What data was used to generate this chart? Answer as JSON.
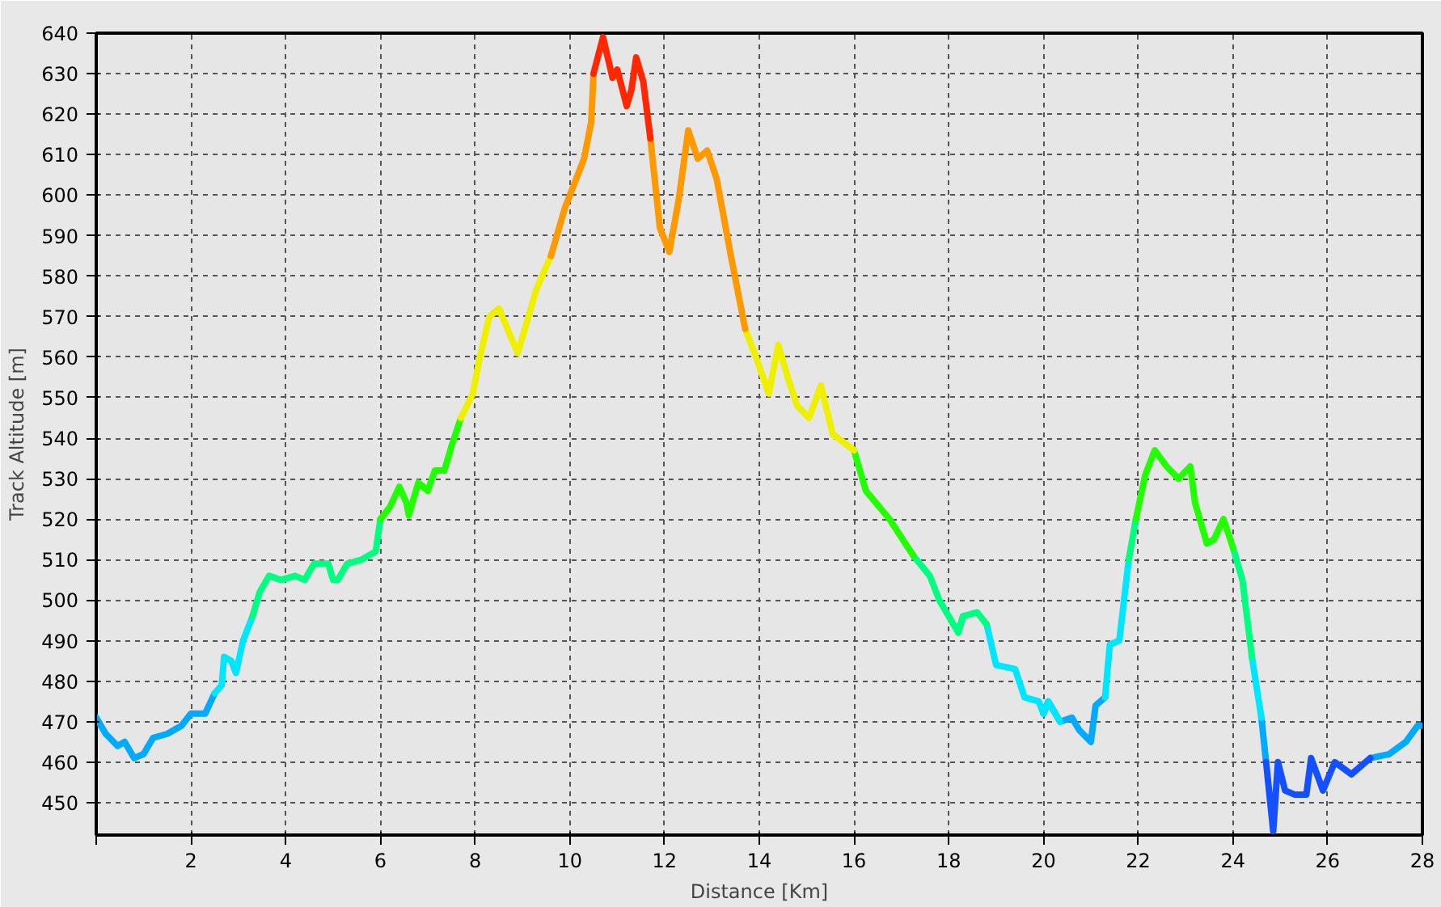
{
  "chart_data": {
    "type": "line",
    "xlabel": "Distance [Km]",
    "ylabel": "Track Altitude [m]",
    "xlim": [
      0,
      28
    ],
    "ylim": [
      442,
      640
    ],
    "xticks": [
      {
        "value": 0,
        "label": null
      },
      2,
      4,
      6,
      8,
      10,
      12,
      14,
      16,
      18,
      20,
      22,
      24,
      26,
      28
    ],
    "yticks": [
      450,
      460,
      470,
      480,
      490,
      500,
      510,
      520,
      530,
      540,
      550,
      560,
      570,
      580,
      590,
      600,
      610,
      620,
      630,
      640
    ],
    "grid": true,
    "marker": "none",
    "line_style": "solid",
    "x": [
      0,
      0.2,
      0.45,
      0.6,
      0.8,
      1.0,
      1.2,
      1.5,
      1.8,
      2.0,
      2.3,
      2.5,
      2.65,
      2.7,
      2.85,
      2.95,
      3.1,
      3.3,
      3.45,
      3.65,
      3.9,
      4.2,
      4.4,
      4.6,
      4.9,
      5.0,
      5.1,
      5.3,
      5.6,
      5.9,
      6.0,
      6.2,
      6.4,
      6.55,
      6.6,
      6.8,
      7.0,
      7.15,
      7.35,
      7.5,
      7.7,
      7.95,
      8.1,
      8.3,
      8.5,
      8.9,
      9.3,
      9.6,
      9.9,
      10.3,
      10.45,
      10.5,
      10.7,
      10.9,
      11.0,
      11.2,
      11.3,
      11.4,
      11.55,
      11.7,
      11.9,
      12.1,
      12.3,
      12.5,
      12.7,
      12.9,
      13.1,
      13.4,
      13.7,
      13.9,
      14.2,
      14.4,
      14.6,
      14.8,
      15.05,
      15.3,
      15.55,
      16.0,
      16.25,
      16.75,
      17.25,
      17.6,
      17.8,
      18.2,
      18.3,
      18.6,
      18.8,
      19.0,
      19.4,
      19.6,
      19.9,
      20.0,
      20.1,
      20.35,
      20.6,
      20.75,
      21.0,
      21.1,
      21.3,
      21.4,
      21.6,
      21.8,
      21.95,
      22.15,
      22.35,
      22.6,
      22.85,
      23.1,
      23.2,
      23.45,
      23.6,
      23.8,
      24.0,
      24.2,
      24.4,
      24.6,
      24.7,
      24.85,
      24.95,
      25.1,
      25.3,
      25.55,
      25.65,
      25.9,
      26.15,
      26.5,
      26.9,
      27.3,
      27.65,
      27.9,
      28.0
    ],
    "series": [
      {
        "color": "#00aaff",
        "values": [
          471,
          467,
          464,
          465,
          461,
          462,
          466,
          467,
          469,
          472,
          472,
          477,
          null,
          null,
          null,
          null,
          null,
          null,
          null,
          null,
          null,
          null,
          null,
          null,
          null,
          null,
          null,
          null,
          null,
          null,
          null,
          null,
          null,
          null,
          null,
          null,
          null,
          null,
          null,
          null,
          null,
          null,
          null,
          null,
          null,
          null,
          null,
          null,
          null,
          null,
          null,
          null,
          null,
          null,
          null,
          null,
          null,
          null,
          null,
          null,
          null,
          null,
          null,
          null,
          null,
          null,
          null,
          null,
          null,
          null,
          null,
          null,
          null,
          null,
          null,
          null,
          null,
          null,
          null,
          null,
          null,
          null,
          null,
          null,
          null,
          null,
          null,
          null,
          null,
          null,
          null,
          472,
          475,
          470,
          471,
          468,
          465,
          474,
          476,
          null,
          null,
          null,
          null,
          null,
          null,
          null,
          null,
          null,
          null,
          null,
          null,
          null,
          null,
          null,
          null,
          471,
          460,
          null,
          null,
          null,
          null,
          null,
          null,
          null,
          null,
          null,
          461,
          462,
          465,
          469,
          469
        ]
      },
      {
        "color": "#00e6ff",
        "values": [
          null,
          null,
          null,
          null,
          null,
          null,
          null,
          null,
          null,
          null,
          null,
          477,
          479,
          486,
          485,
          482,
          490,
          496,
          null,
          null,
          null,
          null,
          null,
          null,
          null,
          null,
          null,
          null,
          null,
          null,
          null,
          null,
          null,
          null,
          null,
          null,
          null,
          null,
          null,
          null,
          null,
          null,
          null,
          null,
          null,
          null,
          null,
          null,
          null,
          null,
          null,
          null,
          null,
          null,
          null,
          null,
          null,
          null,
          null,
          null,
          null,
          null,
          null,
          null,
          null,
          null,
          null,
          null,
          null,
          null,
          null,
          null,
          null,
          null,
          null,
          null,
          null,
          null,
          null,
          null,
          null,
          null,
          null,
          492,
          496,
          null,
          494,
          484,
          483,
          476,
          475,
          472,
          475,
          470,
          null,
          null,
          null,
          null,
          476,
          489,
          490,
          510,
          null,
          null,
          null,
          null,
          null,
          null,
          null,
          null,
          null,
          null,
          null,
          null,
          486,
          471,
          null,
          null,
          null,
          null,
          null,
          null,
          null,
          null,
          null,
          null,
          null,
          null,
          null,
          null,
          null
        ]
      },
      {
        "color": "#00ff80",
        "values": [
          null,
          null,
          null,
          null,
          null,
          null,
          null,
          null,
          null,
          null,
          null,
          null,
          null,
          null,
          null,
          null,
          null,
          496,
          502,
          506,
          505,
          506,
          505,
          509,
          509,
          505,
          505,
          509,
          510,
          512,
          520,
          null,
          null,
          null,
          null,
          null,
          null,
          null,
          null,
          null,
          null,
          null,
          null,
          null,
          null,
          null,
          null,
          null,
          null,
          null,
          null,
          null,
          null,
          null,
          null,
          null,
          null,
          null,
          null,
          null,
          null,
          null,
          null,
          null,
          null,
          null,
          null,
          null,
          null,
          null,
          null,
          null,
          null,
          null,
          null,
          null,
          null,
          null,
          null,
          null,
          511,
          506,
          500,
          492,
          496,
          497,
          494,
          null,
          null,
          null,
          null,
          null,
          null,
          null,
          null,
          null,
          null,
          null,
          null,
          null,
          null,
          510,
          520,
          null,
          null,
          null,
          null,
          null,
          null,
          514,
          515,
          null,
          513,
          505,
          486,
          null,
          null,
          null,
          null,
          null,
          null,
          null,
          null,
          null,
          null,
          null,
          null,
          null,
          null,
          null,
          null
        ]
      },
      {
        "color": "#22ff00",
        "values": [
          null,
          null,
          null,
          null,
          null,
          null,
          null,
          null,
          null,
          null,
          null,
          null,
          null,
          null,
          null,
          null,
          null,
          null,
          null,
          null,
          null,
          null,
          null,
          null,
          null,
          null,
          null,
          null,
          null,
          null,
          520,
          523,
          528,
          524,
          521,
          529,
          527,
          532,
          532,
          538,
          545,
          null,
          null,
          null,
          null,
          null,
          null,
          null,
          null,
          null,
          null,
          null,
          null,
          null,
          null,
          null,
          null,
          null,
          null,
          null,
          null,
          null,
          null,
          null,
          null,
          null,
          null,
          null,
          null,
          null,
          null,
          null,
          null,
          null,
          null,
          null,
          null,
          537,
          527,
          520,
          511,
          null,
          null,
          null,
          null,
          null,
          null,
          null,
          null,
          null,
          null,
          null,
          null,
          null,
          null,
          null,
          null,
          null,
          null,
          null,
          null,
          null,
          520,
          531,
          537,
          533,
          530,
          533,
          524,
          514,
          515,
          520,
          513,
          null,
          null,
          null,
          null,
          null,
          null,
          null,
          null,
          null,
          null,
          null,
          null,
          null,
          null,
          null,
          null,
          null,
          null
        ]
      },
      {
        "color": "#eef000",
        "values": [
          null,
          null,
          null,
          null,
          null,
          null,
          null,
          null,
          null,
          null,
          null,
          null,
          null,
          null,
          null,
          null,
          null,
          null,
          null,
          null,
          null,
          null,
          null,
          null,
          null,
          null,
          null,
          null,
          null,
          null,
          null,
          null,
          null,
          null,
          null,
          null,
          null,
          null,
          null,
          null,
          545,
          551,
          560,
          570,
          572,
          561,
          577,
          585,
          null,
          null,
          null,
          null,
          null,
          null,
          null,
          null,
          null,
          null,
          null,
          null,
          null,
          null,
          null,
          null,
          null,
          null,
          null,
          null,
          567,
          561,
          551,
          563,
          555,
          548,
          545,
          553,
          541,
          537,
          null,
          null,
          null,
          null,
          null,
          null,
          null,
          null,
          null,
          null,
          null,
          null,
          null,
          null,
          null,
          null,
          null,
          null,
          null,
          null,
          null,
          null,
          null,
          null,
          null,
          null,
          null,
          null,
          null,
          null,
          null,
          null,
          null,
          null,
          null,
          null,
          null,
          null,
          null,
          null,
          null,
          null,
          null,
          null,
          null,
          null,
          null,
          null,
          null,
          null,
          null,
          null,
          null
        ]
      },
      {
        "color": "#ff9900",
        "values": [
          null,
          null,
          null,
          null,
          null,
          null,
          null,
          null,
          null,
          null,
          null,
          null,
          null,
          null,
          null,
          null,
          null,
          null,
          null,
          null,
          null,
          null,
          null,
          null,
          null,
          null,
          null,
          null,
          null,
          null,
          null,
          null,
          null,
          null,
          null,
          null,
          null,
          null,
          null,
          null,
          null,
          null,
          null,
          null,
          null,
          null,
          null,
          585,
          597,
          609,
          618,
          630,
          null,
          null,
          null,
          null,
          null,
          null,
          null,
          614,
          592,
          586,
          599,
          616,
          609,
          611,
          604,
          585,
          567,
          null,
          null,
          null,
          null,
          null,
          null,
          null,
          null,
          null,
          null,
          null,
          null,
          null,
          null,
          null,
          null,
          null,
          null,
          null,
          null,
          null,
          null,
          null,
          null,
          null,
          null,
          null,
          null,
          null,
          null,
          null,
          null,
          null,
          null,
          null,
          null,
          null,
          null,
          null,
          null,
          null,
          null,
          null,
          null,
          null,
          null,
          null,
          null,
          null,
          null,
          null,
          null,
          null,
          null,
          null,
          null,
          null,
          null,
          null,
          null,
          null,
          null
        ]
      },
      {
        "color": "#ff2800",
        "values": [
          null,
          null,
          null,
          null,
          null,
          null,
          null,
          null,
          null,
          null,
          null,
          null,
          null,
          null,
          null,
          null,
          null,
          null,
          null,
          null,
          null,
          null,
          null,
          null,
          null,
          null,
          null,
          null,
          null,
          null,
          null,
          null,
          null,
          null,
          null,
          null,
          null,
          null,
          null,
          null,
          null,
          null,
          null,
          null,
          null,
          null,
          null,
          null,
          null,
          null,
          null,
          630,
          639,
          629,
          631,
          622,
          626,
          634,
          628,
          614,
          null,
          null,
          null,
          null,
          null,
          null,
          null,
          null,
          null,
          null,
          null,
          null,
          null,
          null,
          null,
          null,
          null,
          null,
          null,
          null,
          null,
          null,
          null,
          null,
          null,
          null,
          null,
          null,
          null,
          null,
          null,
          null,
          null,
          null,
          null,
          null,
          null,
          null,
          null,
          null,
          null,
          null,
          null,
          null,
          null,
          null,
          null,
          null,
          null,
          null,
          null,
          null,
          null,
          null,
          null,
          null,
          null,
          null,
          null,
          null,
          null,
          null,
          null,
          null,
          null,
          null,
          null,
          null,
          null,
          null,
          null
        ]
      },
      {
        "color": "#1450ff",
        "values": [
          null,
          null,
          null,
          null,
          null,
          null,
          null,
          null,
          null,
          null,
          null,
          null,
          null,
          null,
          null,
          null,
          null,
          null,
          null,
          null,
          null,
          null,
          null,
          null,
          null,
          null,
          null,
          null,
          null,
          null,
          null,
          null,
          null,
          null,
          null,
          null,
          null,
          null,
          null,
          null,
          null,
          null,
          null,
          null,
          null,
          null,
          null,
          null,
          null,
          null,
          null,
          null,
          null,
          null,
          null,
          null,
          null,
          null,
          null,
          null,
          null,
          null,
          null,
          null,
          null,
          null,
          null,
          null,
          null,
          null,
          null,
          null,
          null,
          null,
          null,
          null,
          null,
          null,
          null,
          null,
          null,
          null,
          null,
          null,
          null,
          null,
          null,
          null,
          null,
          null,
          null,
          null,
          null,
          null,
          null,
          null,
          null,
          null,
          null,
          null,
          null,
          null,
          null,
          null,
          null,
          null,
          null,
          null,
          null,
          null,
          null,
          null,
          null,
          null,
          null,
          null,
          460,
          443,
          460,
          453,
          452,
          452,
          461,
          453,
          460,
          457,
          461,
          null,
          null,
          null,
          null
        ]
      }
    ]
  }
}
